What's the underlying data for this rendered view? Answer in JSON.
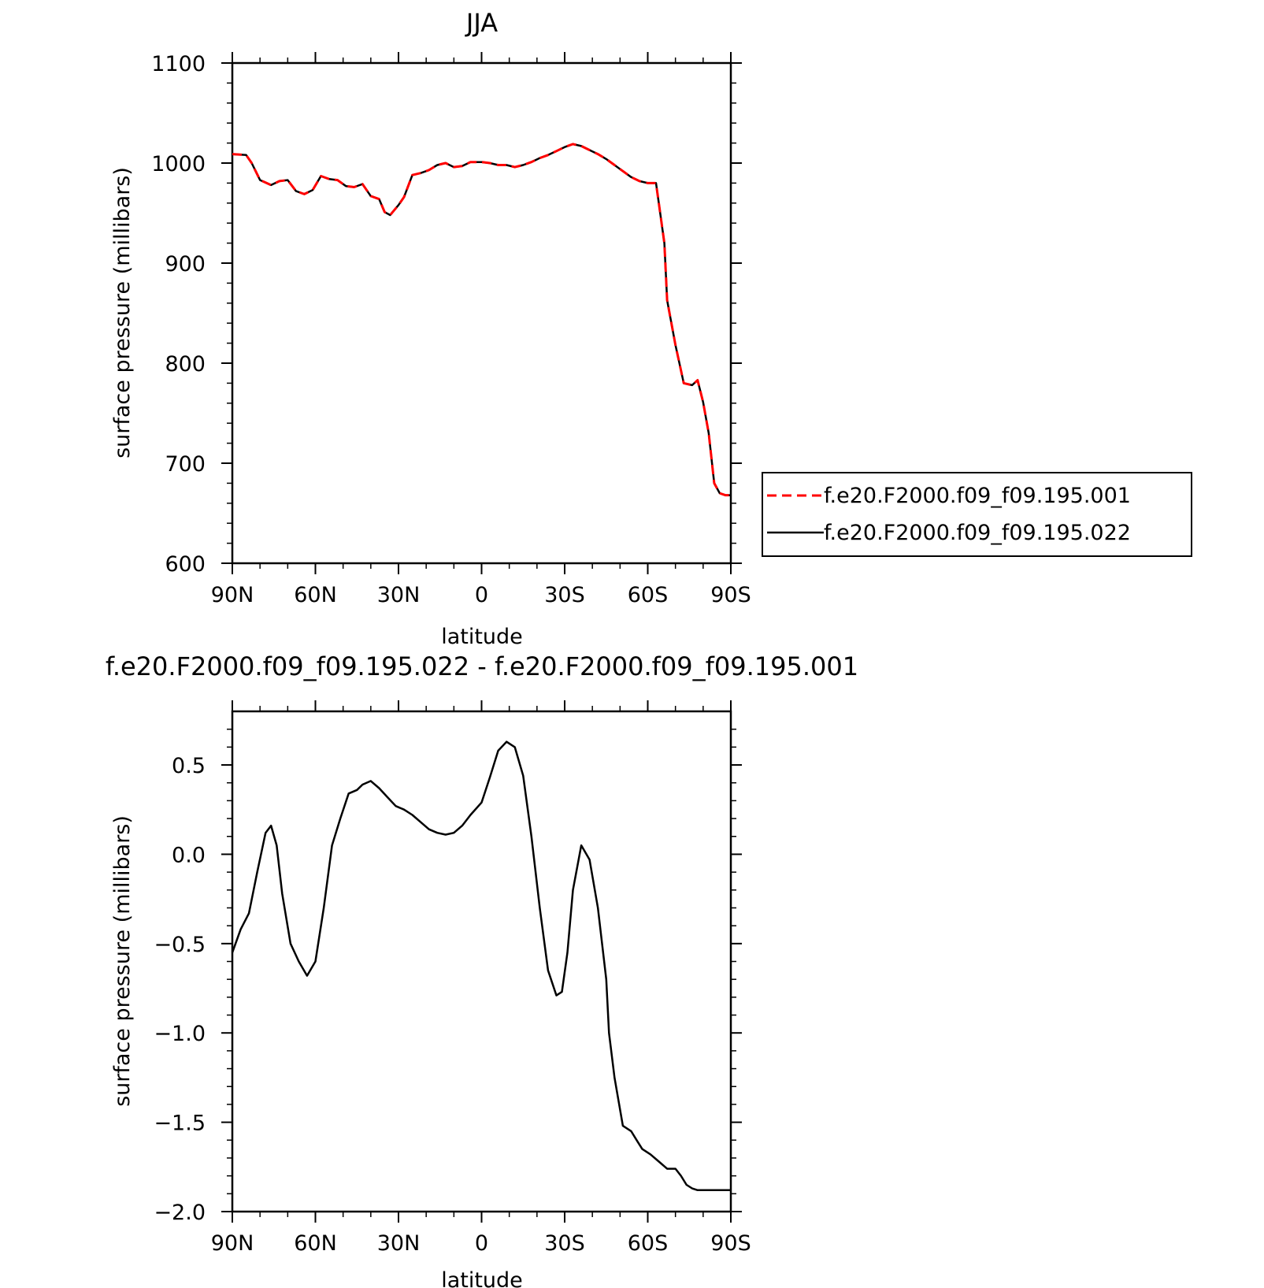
{
  "chart_data": [
    {
      "type": "line",
      "title": "JJA",
      "xlabel": "latitude",
      "ylabel": "surface pressure (millibars)",
      "xlim": [
        90,
        -90
      ],
      "ylim": [
        600,
        1100
      ],
      "xticks": [
        90,
        60,
        30,
        0,
        -30,
        -60,
        -90
      ],
      "xtick_labels": [
        "90N",
        "60N",
        "30N",
        "0",
        "30S",
        "60S",
        "90S"
      ],
      "yticks": [
        600,
        700,
        800,
        900,
        1000,
        1100
      ],
      "ytick_labels": [
        "600",
        "700",
        "800",
        "900",
        "1000",
        "1100"
      ],
      "grid": false,
      "legend_placement": "right",
      "series": [
        {
          "name": "f.e20.F2000.f09_f09.195.001",
          "color": "#ff0000",
          "dash": "dashed",
          "x": [
            90,
            85,
            83,
            80,
            76,
            73,
            70,
            67,
            64,
            61,
            58,
            55,
            52,
            49,
            46,
            43,
            40,
            37,
            35,
            33,
            30,
            28,
            25,
            22,
            19,
            16,
            13,
            10,
            7,
            4,
            0,
            -3,
            -6,
            -9,
            -12,
            -15,
            -18,
            -21,
            -24,
            -27,
            -30,
            -33,
            -36,
            -39,
            -42,
            -45,
            -48,
            -51,
            -54,
            -57,
            -60,
            -63,
            -66,
            -67,
            -70,
            -73,
            -76,
            -78,
            -80,
            -82,
            -84,
            -86,
            -88,
            -90
          ],
          "y": [
            1009,
            1008,
            1000,
            983,
            978,
            982,
            983,
            972,
            969,
            973,
            987,
            984,
            983,
            977,
            976,
            979,
            967,
            964,
            951,
            948,
            958,
            966,
            988,
            990,
            993,
            998,
            1000,
            996,
            997,
            1001,
            1001,
            1000,
            998,
            998,
            996,
            998,
            1001,
            1005,
            1008,
            1012,
            1016,
            1019,
            1017,
            1013,
            1009,
            1004,
            998,
            992,
            986,
            982,
            980,
            980,
            920,
            863,
            818,
            780,
            778,
            783,
            761,
            730,
            680,
            670,
            668,
            668
          ]
        },
        {
          "name": "f.e20.F2000.f09_f09.195.022",
          "color": "#000000",
          "dash": "solid",
          "x": [
            90,
            85,
            83,
            80,
            76,
            73,
            70,
            67,
            64,
            61,
            58,
            55,
            52,
            49,
            46,
            43,
            40,
            37,
            35,
            33,
            30,
            28,
            25,
            22,
            19,
            16,
            13,
            10,
            7,
            4,
            0,
            -3,
            -6,
            -9,
            -12,
            -15,
            -18,
            -21,
            -24,
            -27,
            -30,
            -33,
            -36,
            -39,
            -42,
            -45,
            -48,
            -51,
            -54,
            -57,
            -60,
            -63,
            -66,
            -67,
            -70,
            -73,
            -76,
            -78,
            -80,
            -82,
            -84,
            -86,
            -88,
            -90
          ],
          "y": [
            1009,
            1008,
            1000,
            983,
            978,
            982,
            983,
            972,
            969,
            973,
            987,
            984,
            983,
            977,
            976,
            979,
            967,
            964,
            951,
            948,
            958,
            966,
            988,
            990,
            993,
            998,
            1000,
            996,
            997,
            1001,
            1001,
            1000,
            998,
            998,
            996,
            998,
            1001,
            1005,
            1008,
            1012,
            1016,
            1019,
            1017,
            1013,
            1009,
            1004,
            998,
            992,
            986,
            982,
            980,
            980,
            920,
            863,
            818,
            780,
            778,
            783,
            761,
            730,
            680,
            670,
            668,
            668
          ]
        }
      ]
    },
    {
      "type": "line",
      "title": "f.e20.F2000.f09_f09.195.022 - f.e20.F2000.f09_f09.195.001",
      "xlabel": "latitude",
      "ylabel": "surface pressure (millibars)",
      "xlim": [
        90,
        -90
      ],
      "ylim": [
        -2.0,
        0.8
      ],
      "xticks": [
        90,
        60,
        30,
        0,
        -30,
        -60,
        -90
      ],
      "xtick_labels": [
        "90N",
        "60N",
        "30N",
        "0",
        "30S",
        "60S",
        "90S"
      ],
      "yticks": [
        -2.0,
        -1.5,
        -1.0,
        -0.5,
        0.0,
        0.5
      ],
      "ytick_labels": [
        "−2.0",
        "−1.5",
        "−1.0",
        "−0.5",
        "0.0",
        "0.5"
      ],
      "grid": false,
      "series": [
        {
          "color": "#000000",
          "dash": "solid",
          "x": [
            90,
            87,
            84,
            81,
            78,
            76,
            74,
            72,
            69,
            66,
            63,
            60,
            57,
            54,
            51,
            48,
            45,
            43,
            40,
            37,
            34,
            31,
            28,
            25,
            22,
            19,
            16,
            13,
            10,
            7,
            4,
            0,
            -3,
            -6,
            -9,
            -12,
            -15,
            -18,
            -21,
            -24,
            -27,
            -29,
            -31,
            -33,
            -36,
            -39,
            -42,
            -45,
            -46,
            -48,
            -51,
            -54,
            -56,
            -58,
            -61,
            -64,
            -67,
            -70,
            -72,
            -74,
            -76,
            -78,
            -80,
            -82,
            -84,
            -86,
            -88,
            -90
          ],
          "y": [
            -0.55,
            -0.42,
            -0.33,
            -0.1,
            0.12,
            0.16,
            0.05,
            -0.22,
            -0.5,
            -0.6,
            -0.68,
            -0.6,
            -0.3,
            0.05,
            0.2,
            0.34,
            0.36,
            0.39,
            0.41,
            0.37,
            0.32,
            0.27,
            0.25,
            0.22,
            0.18,
            0.14,
            0.12,
            0.11,
            0.12,
            0.16,
            0.22,
            0.29,
            0.43,
            0.58,
            0.63,
            0.6,
            0.44,
            0.1,
            -0.3,
            -0.65,
            -0.79,
            -0.77,
            -0.55,
            -0.2,
            0.05,
            -0.03,
            -0.3,
            -0.7,
            -1.0,
            -1.25,
            -1.52,
            -1.55,
            -1.6,
            -1.65,
            -1.68,
            -1.72,
            -1.76,
            -1.76,
            -1.8,
            -1.85,
            -1.87,
            -1.88,
            -1.88,
            -1.88,
            -1.88,
            -1.88,
            -1.88,
            -1.88
          ]
        }
      ]
    }
  ]
}
